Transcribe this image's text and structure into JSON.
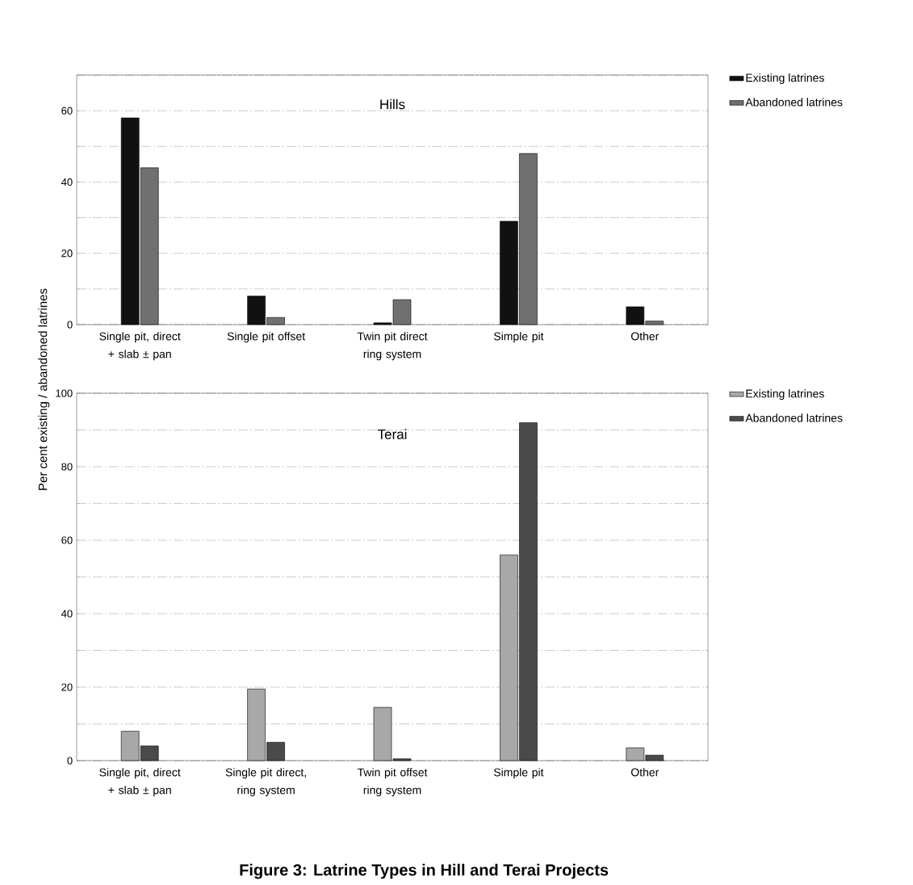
{
  "chart_data": [
    {
      "type": "bar",
      "title": "Hills",
      "categories": [
        "Single pit, direct + slab ± pan",
        "Single pit offset",
        "Twin pit direct ring system",
        "Simple pit",
        "Other"
      ],
      "series": [
        {
          "name": "Existing latrines",
          "color": "#111111",
          "values": [
            58,
            8,
            0.5,
            29,
            5
          ]
        },
        {
          "name": "Abandoned latrines",
          "color": "#707070",
          "values": [
            44,
            2,
            7,
            48,
            1
          ]
        }
      ],
      "ylim": [
        0,
        70
      ],
      "yticks": [
        0,
        {
          "value": 10,
          "label": null
        },
        20,
        {
          "value": 30,
          "label": null
        },
        40,
        {
          "value": 50,
          "label": null
        },
        60,
        {
          "value": 70,
          "label": null
        }
      ],
      "grid": "y",
      "legend": "right"
    },
    {
      "type": "bar",
      "title": "Terai",
      "ylabel": "Per cent existing / abandoned latrines",
      "categories": [
        "Single pit, direct + slab ± pan",
        "Single pit direct, ring system",
        "Twin pit offset ring system",
        "Simple pit",
        "Other"
      ],
      "series": [
        {
          "name": "Existing latrines",
          "color": "#a8a8a8",
          "values": [
            8,
            19.5,
            14.5,
            56,
            3.5
          ]
        },
        {
          "name": "Abandoned latrines",
          "color": "#4a4a4a",
          "values": [
            4,
            5,
            0.5,
            92,
            1.5
          ]
        }
      ],
      "ylim": [
        0,
        100
      ],
      "yticks": [
        0,
        {
          "value": 10,
          "label": null
        },
        20,
        {
          "value": 30,
          "label": null
        },
        40,
        {
          "value": 50,
          "label": null
        },
        60,
        {
          "value": 70,
          "label": null
        },
        80,
        {
          "value": 90,
          "label": null
        },
        100
      ],
      "grid": "y",
      "legend": "right",
      "annotations": [
        "Figure 3: Latrine Types in Hill and Terai Projects"
      ]
    }
  ]
}
